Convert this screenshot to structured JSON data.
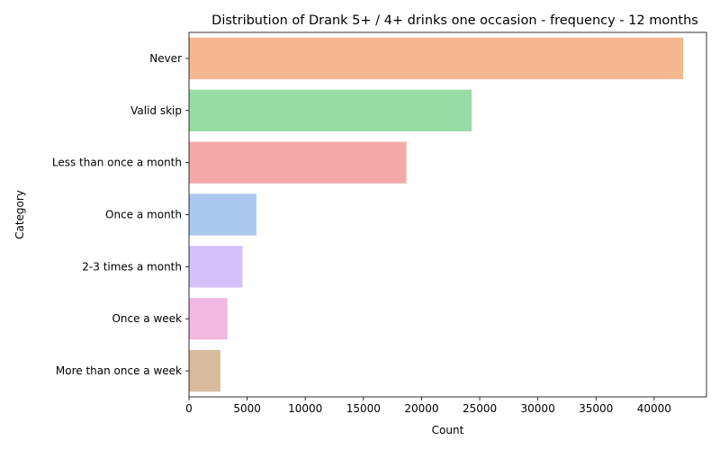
{
  "chart_data": {
    "type": "bar",
    "orientation": "horizontal",
    "title": "Distribution of Drank 5+ / 4+ drinks one occasion - frequency - 12 months",
    "xlabel": "Count",
    "ylabel": "Category",
    "xlim": [
      0,
      44500
    ],
    "xticks": [
      0,
      5000,
      10000,
      15000,
      20000,
      25000,
      30000,
      35000,
      40000
    ],
    "grid": false,
    "legend": "none",
    "categories": [
      "Never",
      "Valid skip",
      "Less than once a month",
      "Once a month",
      "2-3 times a month",
      "Once a week",
      "More than once a week"
    ],
    "values": [
      42500,
      24300,
      18700,
      5800,
      4600,
      3300,
      2700
    ],
    "colors": [
      "#f4b78f",
      "#97dca5",
      "#f4a9a8",
      "#abc8ef",
      "#d3c1fb",
      "#f2b8e1",
      "#d8bb9d"
    ]
  }
}
